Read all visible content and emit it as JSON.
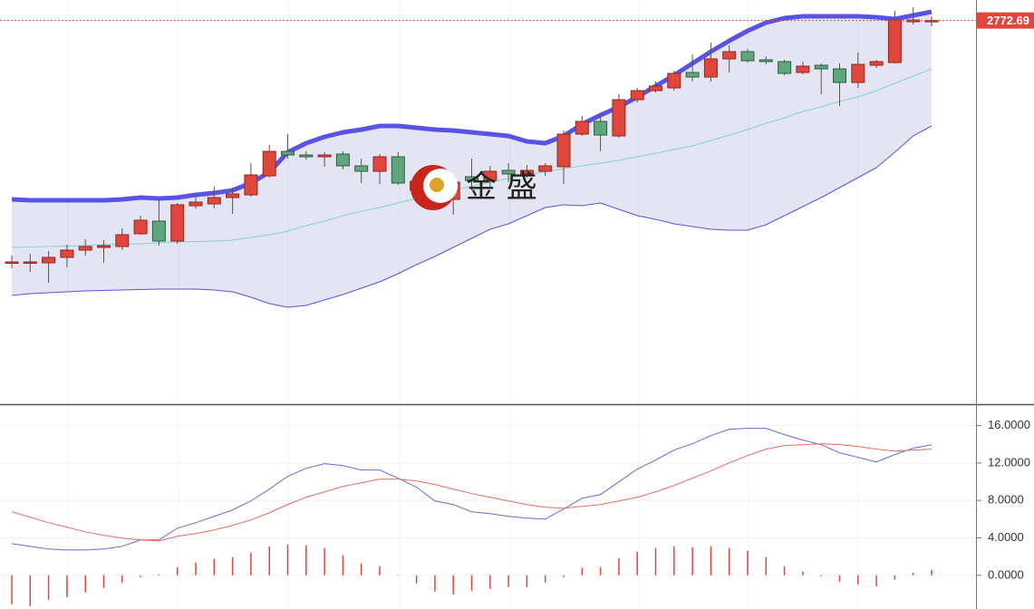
{
  "chart_data": [
    {
      "type": "candlestick",
      "watermark": "金 盛",
      "last_price": 2772.69,
      "up_color": "#e0463c",
      "down_color": "#5fa67d",
      "last_price_color": "#e0463c",
      "ylim": [
        2560,
        2784
      ],
      "open": [
        2639.5,
        2639.5,
        2639,
        2642,
        2646,
        2647.5,
        2648,
        2655,
        2662,
        2651,
        2670.5,
        2671.5,
        2675,
        2676.5,
        2687,
        2700.5,
        2698.5,
        2697.5,
        2699,
        2692.5,
        2689.5,
        2697.5,
        2679,
        2682.5,
        2674,
        2686.5,
        2684.5,
        2690,
        2688,
        2689.5,
        2692,
        2710,
        2717,
        2709,
        2729,
        2734,
        2735.5,
        2744,
        2741.5,
        2751.5,
        2755.5,
        2751,
        2750,
        2744,
        2748,
        2746,
        2738.5,
        2748,
        2749.5,
        2772,
        2772.5
      ],
      "high": [
        2643,
        2644,
        2645.5,
        2649,
        2652,
        2651.5,
        2658,
        2665,
        2674,
        2672,
        2675.5,
        2681,
        2680.5,
        2694,
        2704,
        2710,
        2700.5,
        2700,
        2700.5,
        2696.5,
        2699,
        2700,
        2686.5,
        2689,
        2687,
        2696.5,
        2692.5,
        2694,
        2693,
        2694,
        2712,
        2720,
        2721.5,
        2732,
        2735.5,
        2739,
        2745,
        2754,
        2760.5,
        2759,
        2757,
        2753,
        2751,
        2750,
        2749,
        2749,
        2755,
        2751,
        2778,
        2780,
        2775
      ],
      "low": [
        2636,
        2634,
        2628,
        2636.5,
        2643,
        2639,
        2646,
        2654.5,
        2648.5,
        2649.5,
        2669,
        2669,
        2666,
        2675.5,
        2686,
        2696.5,
        2696,
        2692,
        2690.5,
        2683,
        2682.5,
        2682,
        2676.5,
        2669,
        2665.5,
        2679,
        2680,
        2683.5,
        2686,
        2687,
        2682.5,
        2709,
        2700.5,
        2708,
        2727.5,
        2733,
        2734,
        2739,
        2739,
        2744,
        2749.5,
        2748.5,
        2742.5,
        2743,
        2732,
        2725.5,
        2735.5,
        2746.5,
        2749,
        2770.5,
        2769.5
      ],
      "close": [
        2639.5,
        2639.5,
        2642,
        2646,
        2648,
        2648.5,
        2654.5,
        2662.5,
        2651,
        2671,
        2672.5,
        2675,
        2677,
        2687.5,
        2700.5,
        2698.5,
        2697.5,
        2698.5,
        2692.5,
        2689.5,
        2697.5,
        2683,
        2684,
        2675.5,
        2683.5,
        2684.5,
        2689.5,
        2688,
        2690,
        2692.5,
        2710,
        2717,
        2709.5,
        2729,
        2734,
        2736.5,
        2743.5,
        2741.5,
        2751.5,
        2755.5,
        2750.5,
        2750,
        2743.5,
        2747.5,
        2746,
        2738.5,
        2748.5,
        2750,
        2773,
        2773,
        2772.69
      ],
      "series": [
        {
          "color": "#5a52e6",
          "values": [
            2674,
            2673.5,
            2673.5,
            2673.5,
            2673.5,
            2673.5,
            2674,
            2675,
            2674.5,
            2675,
            2676.5,
            2677.5,
            2679,
            2683,
            2689,
            2700,
            2705,
            2708.5,
            2711,
            2712.5,
            2714.5,
            2714.5,
            2713.5,
            2712.5,
            2712,
            2711,
            2710,
            2709,
            2706,
            2705,
            2709,
            2715.5,
            2720.5,
            2725,
            2730.5,
            2736.5,
            2742.5,
            2749,
            2755.5,
            2761.5,
            2767,
            2771.5,
            2774,
            2775,
            2775,
            2775,
            2775,
            2774.5,
            2773.5,
            2775.5,
            2777.5
          ]
        },
        {
          "color": "#7fd8c8",
          "values": [
            2647.5,
            2647.75,
            2648,
            2648.25,
            2648.5,
            2649,
            2649.25,
            2649.5,
            2650,
            2650.5,
            2650.75,
            2651,
            2651.5,
            2653,
            2654.5,
            2656.5,
            2659.5,
            2662,
            2665,
            2667.5,
            2669.5,
            2672,
            2674.5,
            2676.5,
            2679,
            2681.25,
            2683.5,
            2685.5,
            2687.5,
            2689.25,
            2691,
            2692.5,
            2694,
            2695.5,
            2697.5,
            2699.5,
            2701.5,
            2703.5,
            2706.5,
            2709.5,
            2712.5,
            2716,
            2719,
            2722.5,
            2725,
            2728,
            2730.5,
            2734,
            2738,
            2742,
            2746
          ]
        },
        {
          "color": "#5a52e6",
          "values": [
            2621,
            2622,
            2622.5,
            2623,
            2623.5,
            2623.75,
            2624,
            2624.25,
            2624.5,
            2624.5,
            2624.5,
            2624,
            2623,
            2620,
            2616.5,
            2614.5,
            2615.5,
            2618.5,
            2621.5,
            2625,
            2628.5,
            2633,
            2638,
            2642.5,
            2647.5,
            2652.5,
            2657.5,
            2660.5,
            2665,
            2669.5,
            2671,
            2670.5,
            2672,
            2668.5,
            2665,
            2663,
            2660.5,
            2659,
            2657.5,
            2657,
            2657,
            2660,
            2665,
            2670,
            2675,
            2680.5,
            2686,
            2691.5,
            2700,
            2709,
            2714.5
          ]
        }
      ]
    },
    {
      "type": "macd",
      "ylim": [
        -3.6,
        17.9
      ],
      "yticks": [
        {
          "value": 0,
          "label": "0.0000"
        },
        {
          "value": 4,
          "label": "4.0000"
        },
        {
          "value": 8,
          "label": "8.0000"
        },
        {
          "value": 12,
          "label": "12.0000"
        },
        {
          "value": 16,
          "label": "16.0000"
        }
      ],
      "grid": true,
      "histogram": {
        "color": "#e0463c",
        "values": [
          -3.1,
          -3.3,
          -2.62,
          -2.33,
          -1.84,
          -1.36,
          -0.78,
          -0.19,
          0.1,
          0.87,
          1.36,
          1.75,
          1.94,
          2.42,
          3.1,
          3.3,
          3.2,
          2.91,
          2.13,
          1.26,
          0.97,
          -0.05,
          -0.87,
          -1.75,
          -2.04,
          -1.65,
          -1.45,
          -1.26,
          -1.26,
          -0.78,
          -0.19,
          0.78,
          0.87,
          1.84,
          2.52,
          2.91,
          3.1,
          3.01,
          3.1,
          2.91,
          2.62,
          1.94,
          0.97,
          0.39,
          -0.1,
          -0.68,
          -0.97,
          -1.16,
          -0.48,
          0.29,
          0.58
        ]
      },
      "series": [
        {
          "color": "#6a66e0",
          "values": [
            3.39,
            3.1,
            2.81,
            2.71,
            2.71,
            2.81,
            3.1,
            3.78,
            3.78,
            5.04,
            5.62,
            6.3,
            6.98,
            7.95,
            9.21,
            10.57,
            11.44,
            11.93,
            11.73,
            11.25,
            11.25,
            10.38,
            9.41,
            7.95,
            7.56,
            6.79,
            6.59,
            6.3,
            6.11,
            6.01,
            7.08,
            8.24,
            8.63,
            9.99,
            11.35,
            12.32,
            13.38,
            14.06,
            14.93,
            15.61,
            15.71,
            15.71,
            15.03,
            14.45,
            13.96,
            13.09,
            12.61,
            12.12,
            12.9,
            13.58,
            13.96
          ]
        },
        {
          "color": "#ee6a5e",
          "values": [
            6.79,
            6.21,
            5.62,
            5.14,
            4.65,
            4.27,
            3.98,
            3.78,
            3.68,
            4.17,
            4.46,
            4.85,
            5.33,
            5.92,
            6.69,
            7.56,
            8.34,
            8.92,
            9.5,
            9.89,
            10.28,
            10.28,
            10.08,
            9.7,
            9.21,
            8.73,
            8.34,
            7.95,
            7.56,
            7.27,
            7.18,
            7.37,
            7.56,
            7.95,
            8.34,
            8.92,
            9.6,
            10.38,
            11.15,
            12.02,
            12.8,
            13.48,
            13.87,
            13.96,
            14.06,
            13.96,
            13.77,
            13.48,
            13.28,
            13.38,
            13.48
          ]
        }
      ]
    }
  ]
}
